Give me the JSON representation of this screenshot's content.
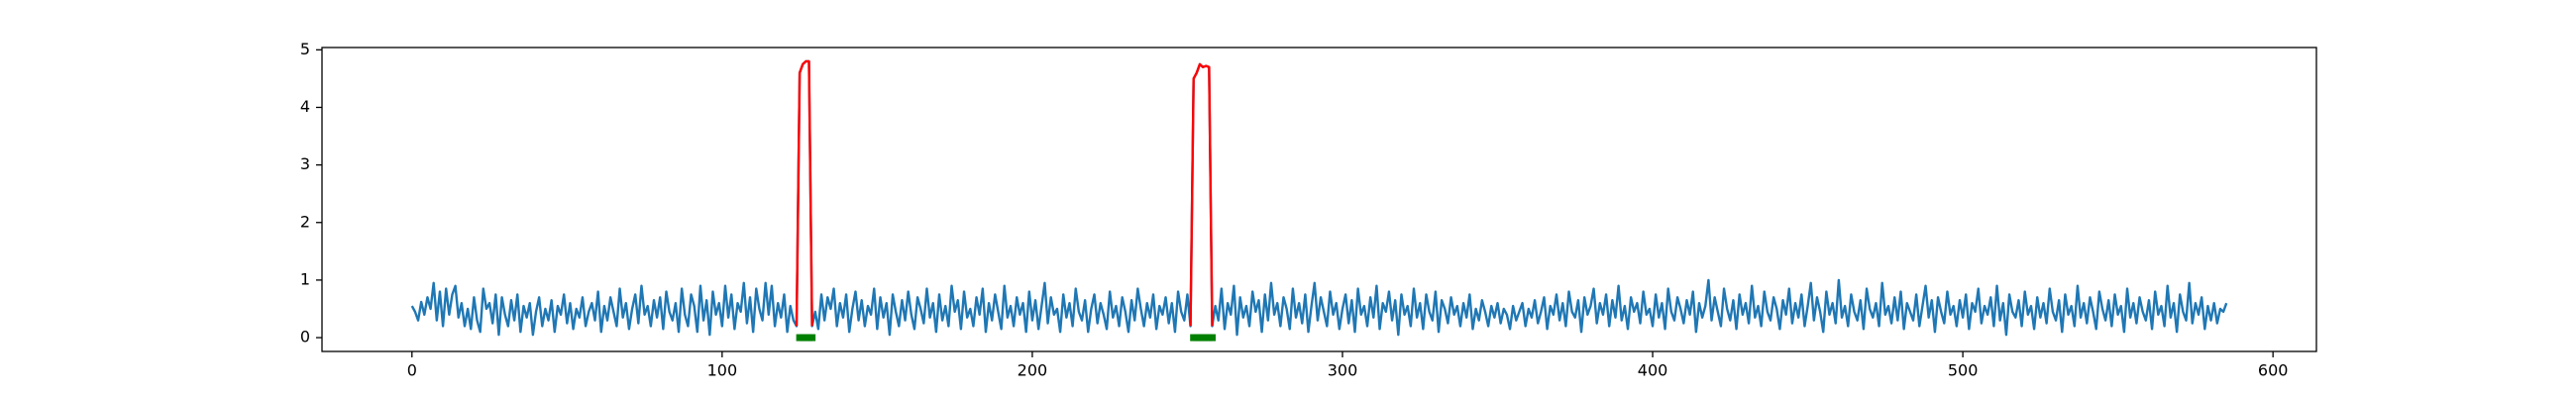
{
  "chart_data": {
    "type": "line",
    "xlim": [
      -29,
      614
    ],
    "ylim": [
      -0.24,
      5.04
    ],
    "xticks": [
      0,
      100,
      200,
      300,
      400,
      500,
      600
    ],
    "yticks": [
      0,
      1,
      2,
      3,
      4,
      5
    ],
    "grid": false,
    "series": [
      {
        "color": "#1f77b4",
        "values": [
          0.55,
          0.45,
          0.3,
          0.62,
          0.4,
          0.7,
          0.5,
          0.95,
          0.3,
          0.8,
          0.2,
          0.85,
          0.4,
          0.75,
          0.9,
          0.35,
          0.6,
          0.2,
          0.5,
          0.15,
          0.7,
          0.3,
          0.1,
          0.85,
          0.5,
          0.6,
          0.25,
          0.75,
          0.05,
          0.7,
          0.4,
          0.2,
          0.65,
          0.3,
          0.75,
          0.1,
          0.55,
          0.35,
          0.6,
          0.05,
          0.45,
          0.7,
          0.2,
          0.5,
          0.3,
          0.65,
          0.1,
          0.55,
          0.4,
          0.75,
          0.25,
          0.6,
          0.15,
          0.5,
          0.35,
          0.7,
          0.2,
          0.45,
          0.6,
          0.3,
          0.8,
          0.1,
          0.55,
          0.3,
          0.7,
          0.45,
          0.2,
          0.85,
          0.35,
          0.6,
          0.15,
          0.5,
          0.75,
          0.25,
          0.9,
          0.4,
          0.55,
          0.2,
          0.65,
          0.35,
          0.7,
          0.15,
          0.8,
          0.45,
          0.3,
          0.6,
          0.1,
          0.85,
          0.4,
          0.2,
          0.75,
          0.55,
          0.1,
          0.9,
          0.3,
          0.65,
          0.05,
          0.8,
          0.4,
          0.6,
          0.2,
          0.9,
          0.35,
          0.75,
          0.15,
          0.6,
          0.45,
          0.95,
          0.25,
          0.7,
          0.1,
          0.85,
          0.5,
          0.3,
          0.95,
          0.4,
          0.9,
          0.2,
          0.6,
          0.35,
          0.75,
          0.1,
          0.55,
          0.3,
          0.2,
          4.6,
          4.75,
          4.8,
          4.8,
          0.2,
          0.45,
          0.15,
          0.75,
          0.3,
          0.7,
          0.5,
          0.85,
          0.2,
          0.6,
          0.35,
          0.75,
          0.1,
          0.5,
          0.8,
          0.3,
          0.65,
          0.2,
          0.55,
          0.4,
          0.85,
          0.15,
          0.7,
          0.35,
          0.6,
          0.05,
          0.75,
          0.45,
          0.2,
          0.65,
          0.3,
          0.8,
          0.4,
          0.15,
          0.7,
          0.5,
          0.25,
          0.85,
          0.35,
          0.6,
          0.1,
          0.75,
          0.3,
          0.55,
          0.2,
          0.9,
          0.45,
          0.65,
          0.15,
          0.8,
          0.35,
          0.5,
          0.2,
          0.7,
          0.4,
          0.85,
          0.1,
          0.6,
          0.3,
          0.75,
          0.45,
          0.15,
          0.9,
          0.35,
          0.55,
          0.2,
          0.7,
          0.4,
          0.6,
          0.1,
          0.8,
          0.3,
          0.65,
          0.15,
          0.55,
          0.95,
          0.25,
          0.7,
          0.4,
          0.5,
          0.1,
          0.75,
          0.35,
          0.6,
          0.2,
          0.85,
          0.45,
          0.3,
          0.65,
          0.1,
          0.5,
          0.75,
          0.25,
          0.6,
          0.4,
          0.15,
          0.8,
          0.35,
          0.55,
          0.2,
          0.7,
          0.45,
          0.1,
          0.65,
          0.3,
          0.85,
          0.5,
          0.2,
          0.6,
          0.35,
          0.75,
          0.15,
          0.55,
          0.4,
          0.7,
          0.25,
          0.6,
          0.1,
          0.8,
          0.45,
          0.3,
          0.75,
          0.2,
          4.5,
          4.6,
          4.75,
          4.7,
          4.72,
          4.7,
          0.2,
          0.55,
          0.3,
          0.85,
          0.15,
          0.6,
          0.4,
          0.9,
          0.05,
          0.7,
          0.35,
          0.55,
          0.2,
          0.8,
          0.45,
          0.65,
          0.1,
          0.75,
          0.3,
          0.95,
          0.4,
          0.6,
          0.2,
          0.7,
          0.5,
          0.15,
          0.85,
          0.35,
          0.6,
          0.25,
          0.75,
          0.1,
          0.55,
          0.95,
          0.3,
          0.7,
          0.45,
          0.2,
          0.8,
          0.4,
          0.6,
          0.15,
          0.5,
          0.75,
          0.25,
          0.65,
          0.1,
          0.85,
          0.4,
          0.55,
          0.2,
          0.7,
          0.35,
          0.9,
          0.15,
          0.6,
          0.45,
          0.8,
          0.3,
          0.65,
          0.05,
          0.75,
          0.4,
          0.55,
          0.2,
          0.85,
          0.35,
          0.6,
          0.15,
          0.75,
          0.45,
          0.3,
          0.8,
          0.1,
          0.65,
          0.5,
          0.25,
          0.7,
          0.4,
          0.55,
          0.2,
          0.6,
          0.35,
          0.75,
          0.15,
          0.5,
          0.3,
          0.65,
          0.45,
          0.2,
          0.55,
          0.35,
          0.6,
          0.25,
          0.5,
          0.4,
          0.15,
          0.55,
          0.3,
          0.45,
          0.6,
          0.2,
          0.5,
          0.35,
          0.65,
          0.25,
          0.45,
          0.7,
          0.15,
          0.55,
          0.4,
          0.75,
          0.3,
          0.6,
          0.2,
          0.8,
          0.45,
          0.35,
          0.65,
          0.1,
          0.7,
          0.4,
          0.55,
          0.85,
          0.25,
          0.6,
          0.4,
          0.75,
          0.2,
          0.65,
          0.35,
          0.9,
          0.3,
          0.55,
          0.15,
          0.7,
          0.45,
          0.6,
          0.25,
          0.8,
          0.4,
          0.5,
          0.2,
          0.75,
          0.35,
          0.6,
          0.15,
          0.85,
          0.45,
          0.3,
          0.7,
          0.5,
          0.25,
          0.65,
          0.4,
          0.8,
          0.1,
          0.6,
          0.35,
          0.55,
          1.0,
          0.3,
          0.7,
          0.45,
          0.2,
          0.85,
          0.5,
          0.3,
          0.65,
          0.15,
          0.75,
          0.4,
          0.6,
          0.25,
          0.9,
          0.35,
          0.55,
          0.2,
          0.8,
          0.45,
          0.3,
          0.7,
          0.5,
          0.15,
          0.65,
          0.4,
          0.85,
          0.25,
          0.6,
          0.35,
          0.75,
          0.2,
          0.55,
          0.95,
          0.3,
          0.7,
          0.45,
          0.1,
          0.8,
          0.4,
          0.6,
          0.25,
          1.0,
          0.35,
          0.55,
          0.2,
          0.75,
          0.45,
          0.3,
          0.65,
          0.15,
          0.85,
          0.5,
          0.35,
          0.6,
          0.2,
          0.95,
          0.4,
          0.55,
          0.25,
          0.7,
          0.3,
          0.8,
          0.15,
          0.6,
          0.45,
          0.3,
          0.75,
          0.2,
          0.55,
          0.9,
          0.35,
          0.65,
          0.1,
          0.7,
          0.45,
          0.25,
          0.8,
          0.4,
          0.55,
          0.2,
          0.65,
          0.35,
          0.75,
          0.15,
          0.6,
          0.45,
          0.85,
          0.25,
          0.55,
          0.4,
          0.7,
          0.2,
          0.9,
          0.3,
          0.6,
          0.05,
          0.75,
          0.45,
          0.35,
          0.65,
          0.2,
          0.8,
          0.4,
          0.55,
          0.15,
          0.7,
          0.35,
          0.6,
          0.25,
          0.85,
          0.45,
          0.3,
          0.65,
          0.1,
          0.75,
          0.4,
          0.55,
          0.2,
          0.9,
          0.35,
          0.6,
          0.25,
          0.7,
          0.45,
          0.15,
          0.8,
          0.5,
          0.3,
          0.65,
          0.2,
          0.75,
          0.4,
          0.55,
          0.1,
          0.85,
          0.35,
          0.6,
          0.25,
          0.7,
          0.45,
          0.3,
          0.65,
          0.15,
          0.8,
          0.4,
          0.55,
          0.2,
          0.9,
          0.35,
          0.6,
          0.1,
          0.75,
          0.45,
          0.3,
          0.95,
          0.25,
          0.6,
          0.4,
          0.7,
          0.15,
          0.55,
          0.3,
          0.6,
          0.25,
          0.5,
          0.45,
          0.6
        ]
      },
      {
        "color": "red",
        "x": [
          124,
          125,
          126,
          127,
          128,
          129
        ],
        "values": [
          0.2,
          4.6,
          4.75,
          4.8,
          4.8,
          0.2
        ]
      },
      {
        "color": "red",
        "x": [
          251,
          252,
          253,
          254,
          255,
          256,
          257,
          258
        ],
        "values": [
          0.2,
          4.5,
          4.6,
          4.75,
          4.7,
          4.72,
          4.7,
          0.2
        ]
      },
      {
        "color": "green",
        "marker": "s",
        "linestyle": "none",
        "x": [
          125,
          126,
          127,
          128,
          129
        ],
        "values": [
          0,
          0,
          0,
          0,
          0
        ]
      },
      {
        "color": "green",
        "marker": "s",
        "linestyle": "none",
        "x": [
          252,
          253,
          254,
          255,
          256,
          257,
          258
        ],
        "values": [
          0,
          0,
          0,
          0,
          0,
          0,
          0
        ]
      }
    ]
  }
}
